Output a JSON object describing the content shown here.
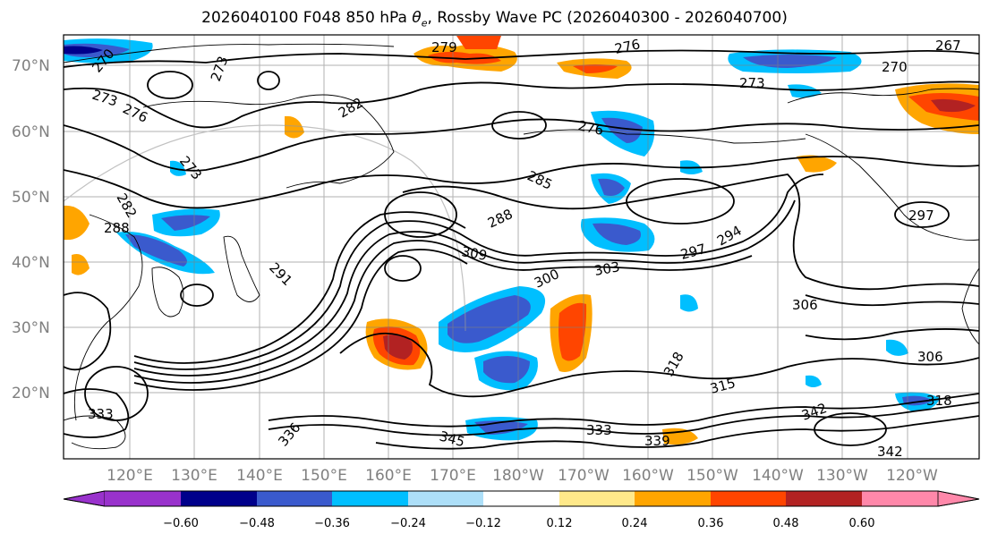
{
  "title": "2026040100 F048 850 hPa θe, Rossby Wave PC (2026040300 - 2026040700)",
  "title_parts": {
    "prefix": "2026040100 F048 850 hPa ",
    "theta": "θ",
    "sub": "e",
    "suffix": ", Rossby Wave PC (2026040300 - 2026040700)"
  },
  "lat_labels": [
    "70°N",
    "60°N",
    "50°N",
    "40°N",
    "30°N",
    "20°N"
  ],
  "lon_labels": [
    "120°E",
    "130°E",
    "140°E",
    "150°E",
    "160°E",
    "170°E",
    "180°W",
    "170°W",
    "160°W",
    "150°W",
    "140°W",
    "130°W",
    "120°W"
  ],
  "colorbar": {
    "ticks": [
      "−0.60",
      "−0.48",
      "−0.36",
      "−0.24",
      "−0.12",
      "0.12",
      "0.24",
      "0.36",
      "0.48",
      "0.60"
    ],
    "colors": [
      "#9932CC",
      "#00008B",
      "#3A5ACD",
      "#00BFFF",
      "#ADDFF8",
      "#FFFFFF",
      "#FFE98A",
      "#FFA500",
      "#FF4500",
      "#B22222",
      "#FF88AA"
    ]
  },
  "contour_labels": [
    {
      "text": "279"
    },
    {
      "text": "276"
    },
    {
      "text": "267"
    },
    {
      "text": "270"
    },
    {
      "text": "270"
    },
    {
      "text": "273"
    },
    {
      "text": "273"
    },
    {
      "text": "276"
    },
    {
      "text": "273"
    },
    {
      "text": "276"
    },
    {
      "text": "282"
    },
    {
      "text": "273"
    },
    {
      "text": "285"
    },
    {
      "text": "288"
    },
    {
      "text": "297"
    },
    {
      "text": "282"
    },
    {
      "text": "288"
    },
    {
      "text": "291"
    },
    {
      "text": "309"
    },
    {
      "text": "300"
    },
    {
      "text": "303"
    },
    {
      "text": "297"
    },
    {
      "text": "294"
    },
    {
      "text": "306"
    },
    {
      "text": "306"
    },
    {
      "text": "318"
    },
    {
      "text": "315"
    },
    {
      "text": "318"
    },
    {
      "text": "342"
    },
    {
      "text": "333"
    },
    {
      "text": "345"
    },
    {
      "text": "333"
    },
    {
      "text": "339"
    },
    {
      "text": "342"
    },
    {
      "text": "336"
    }
  ],
  "colors": {
    "land_outline": "#000000",
    "grid": "#808080",
    "contour": "#000000"
  }
}
